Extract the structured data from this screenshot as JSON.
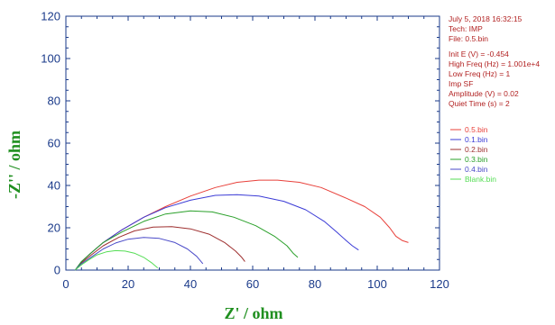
{
  "info": {
    "date_time": "July 5, 2018   16:32:15",
    "tech": "Tech: IMP",
    "file": "File: 0.5.bin",
    "params": [
      "Init E (V) = -0.454",
      "High Freq (Hz) = 1.001e+4",
      "Low Freq (Hz) = 1",
      "Imp SF",
      "Amplitude (V) = 0.02",
      "Quiet Time (s) = 2"
    ]
  },
  "colors": {
    "axis": "#1a3a8a",
    "axis_title": "#1f8f1f",
    "info_text": "#b22222"
  },
  "chart_data": {
    "type": "line",
    "xlabel": "Z' / ohm",
    "ylabel": "-Z'' / ohm",
    "xlim": [
      0,
      120
    ],
    "ylim": [
      0,
      120
    ],
    "xticks": [
      0,
      20,
      40,
      60,
      80,
      100,
      120
    ],
    "yticks": [
      0,
      20,
      40,
      60,
      80,
      100,
      120
    ],
    "grid": false,
    "legend_position": "right",
    "series": [
      {
        "name": "0.5.bin",
        "color": "#e8403a",
        "points": [
          [
            3,
            0
          ],
          [
            5,
            4
          ],
          [
            8,
            8
          ],
          [
            12,
            13
          ],
          [
            18,
            19
          ],
          [
            25,
            25
          ],
          [
            32,
            30
          ],
          [
            40,
            35
          ],
          [
            48,
            39
          ],
          [
            55,
            41.5
          ],
          [
            62,
            42.5
          ],
          [
            68,
            42.5
          ],
          [
            75,
            41.5
          ],
          [
            82,
            39
          ],
          [
            90,
            34
          ],
          [
            96,
            30
          ],
          [
            101,
            25
          ],
          [
            104,
            20
          ],
          [
            106,
            16
          ],
          [
            108,
            14
          ],
          [
            110,
            13
          ]
        ]
      },
      {
        "name": "0.1.bin",
        "color": "#3b3bd6",
        "points": [
          [
            3,
            0
          ],
          [
            5,
            4
          ],
          [
            8,
            8
          ],
          [
            12,
            13
          ],
          [
            18,
            19
          ],
          [
            25,
            25
          ],
          [
            32,
            29.5
          ],
          [
            40,
            33
          ],
          [
            48,
            35.3
          ],
          [
            55,
            35.6
          ],
          [
            62,
            35
          ],
          [
            70,
            32.5
          ],
          [
            77,
            28.5
          ],
          [
            83,
            23
          ],
          [
            87,
            18
          ],
          [
            90,
            14
          ],
          [
            92,
            11.5
          ],
          [
            94,
            9.5
          ]
        ]
      },
      {
        "name": "0.2.bin",
        "color": "#9e2f2f",
        "points": [
          [
            3,
            0
          ],
          [
            5,
            3.5
          ],
          [
            8,
            7
          ],
          [
            12,
            11.5
          ],
          [
            17,
            15.5
          ],
          [
            22,
            18.5
          ],
          [
            28,
            20.3
          ],
          [
            34,
            20.5
          ],
          [
            40,
            19.5
          ],
          [
            46,
            17
          ],
          [
            51,
            13
          ],
          [
            54.5,
            9
          ],
          [
            56.5,
            6
          ],
          [
            57.5,
            4
          ]
        ]
      },
      {
        "name": "0.3.bin",
        "color": "#2aa02a",
        "points": [
          [
            3,
            0
          ],
          [
            5,
            4
          ],
          [
            8,
            8
          ],
          [
            12,
            13
          ],
          [
            18,
            18
          ],
          [
            25,
            23
          ],
          [
            32,
            26.5
          ],
          [
            40,
            28
          ],
          [
            47,
            27.5
          ],
          [
            54,
            25
          ],
          [
            61,
            21
          ],
          [
            67,
            16
          ],
          [
            71,
            11.5
          ],
          [
            73,
            8
          ],
          [
            74.5,
            6
          ]
        ]
      },
      {
        "name": "0.4.bin",
        "color": "#4a4ac8",
        "points": [
          [
            3,
            0
          ],
          [
            5,
            3
          ],
          [
            8,
            6
          ],
          [
            12,
            10
          ],
          [
            16,
            12.8
          ],
          [
            20,
            14.6
          ],
          [
            25,
            15.4
          ],
          [
            30,
            15
          ],
          [
            35,
            13
          ],
          [
            39,
            10
          ],
          [
            42,
            6.5
          ],
          [
            44,
            3
          ]
        ]
      },
      {
        "name": "Blank.bin",
        "color": "#55dd55",
        "points": [
          [
            3,
            0
          ],
          [
            5,
            2.5
          ],
          [
            7.5,
            5
          ],
          [
            10,
            7.2
          ],
          [
            13,
            8.6
          ],
          [
            16,
            9.2
          ],
          [
            19,
            9
          ],
          [
            22,
            8
          ],
          [
            25,
            6
          ],
          [
            27.5,
            3.5
          ],
          [
            29.5,
            1
          ]
        ]
      }
    ]
  }
}
